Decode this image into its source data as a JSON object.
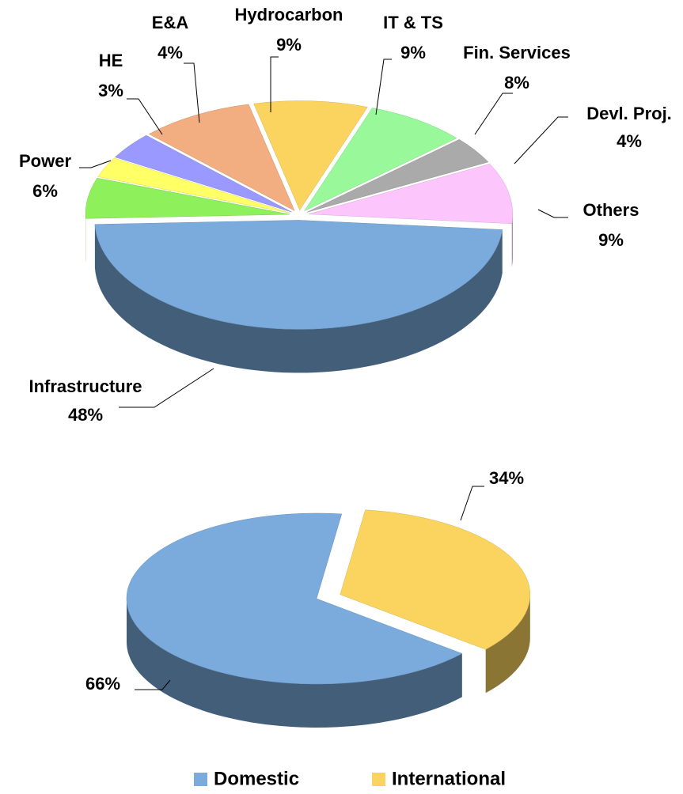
{
  "chart_data": [
    {
      "type": "pie",
      "categories": [
        "Infrastructure",
        "Power",
        "HE",
        "E&A",
        "Hydrocarbon",
        "IT & TS",
        "Fin. Services",
        "Devl. Proj.",
        "Others"
      ],
      "values": [
        48,
        6,
        3,
        4,
        9,
        9,
        8,
        4,
        9
      ],
      "value_labels": [
        "48%",
        "6%",
        "3%",
        "4%",
        "9%",
        "9%",
        "8%",
        "4%",
        "9%"
      ],
      "colors": [
        "#7aabdc",
        "#8ef05a",
        "#ffff66",
        "#9999ff",
        "#f2ad80",
        "#fbd460",
        "#99f99a",
        "#aaaaaa",
        "#fcc5fc"
      ]
    },
    {
      "type": "pie",
      "categories": [
        "Domestic",
        "International"
      ],
      "values": [
        66,
        34
      ],
      "value_labels": [
        "66%",
        "34%"
      ],
      "colors": [
        "#7aabdc",
        "#fbd460"
      ],
      "legend": "bottom"
    }
  ]
}
